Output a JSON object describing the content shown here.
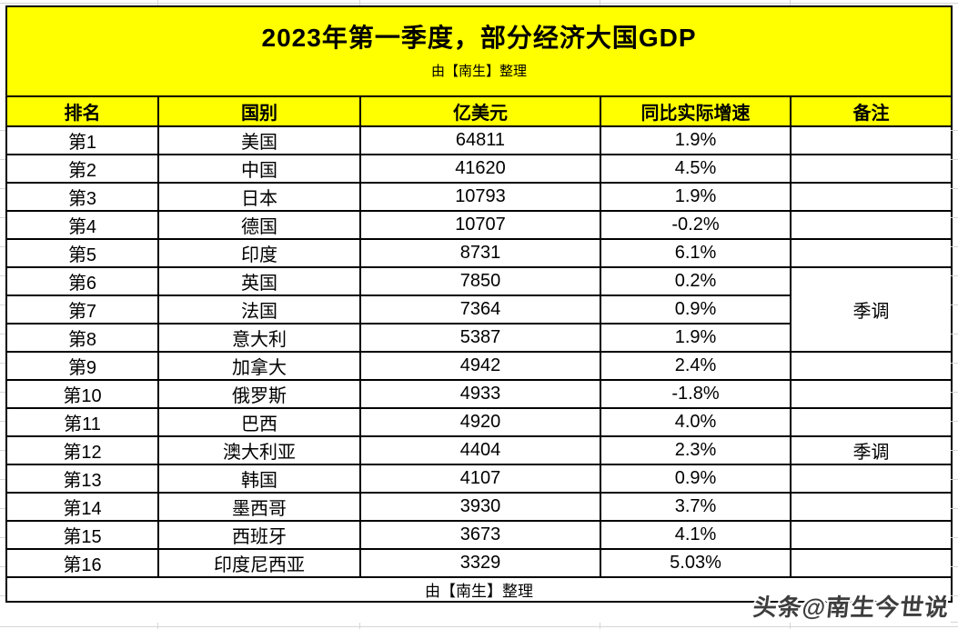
{
  "page": {
    "title": "2023年第一季度，部分经济大国GDP",
    "subtitle": "由【南生】整理",
    "footer": "由【南生】整理",
    "watermark": "头条@南生今世说"
  },
  "table": {
    "columns": [
      "排名",
      "国别",
      "亿美元",
      "同比实际增速",
      "备注"
    ],
    "rows": [
      {
        "rank": "第1",
        "country": "美国",
        "gdp": "64811",
        "growth": "1.9%",
        "note": ""
      },
      {
        "rank": "第2",
        "country": "中国",
        "gdp": "41620",
        "growth": "4.5%",
        "note": ""
      },
      {
        "rank": "第3",
        "country": "日本",
        "gdp": "10793",
        "growth": "1.9%",
        "note": ""
      },
      {
        "rank": "第4",
        "country": "德国",
        "gdp": "10707",
        "growth": "-0.2%",
        "note": ""
      },
      {
        "rank": "第5",
        "country": "印度",
        "gdp": "8731",
        "growth": "6.1%",
        "note": ""
      },
      {
        "rank": "第6",
        "country": "英国",
        "gdp": "7850",
        "growth": "0.2%",
        "note": "季调"
      },
      {
        "rank": "第7",
        "country": "法国",
        "gdp": "7364",
        "growth": "0.9%",
        "note": ""
      },
      {
        "rank": "第8",
        "country": "意大利",
        "gdp": "5387",
        "growth": "1.9%",
        "note": ""
      },
      {
        "rank": "第9",
        "country": "加拿大",
        "gdp": "4942",
        "growth": "2.4%",
        "note": ""
      },
      {
        "rank": "第10",
        "country": "俄罗斯",
        "gdp": "4933",
        "growth": "-1.8%",
        "note": ""
      },
      {
        "rank": "第11",
        "country": "巴西",
        "gdp": "4920",
        "growth": "4.0%",
        "note": ""
      },
      {
        "rank": "第12",
        "country": "澳大利亚",
        "gdp": "4404",
        "growth": "2.3%",
        "note": "季调"
      },
      {
        "rank": "第13",
        "country": "韩国",
        "gdp": "4107",
        "growth": "0.9%",
        "note": ""
      },
      {
        "rank": "第14",
        "country": "墨西哥",
        "gdp": "3930",
        "growth": "3.7%",
        "note": ""
      },
      {
        "rank": "第15",
        "country": "西班牙",
        "gdp": "3673",
        "growth": "4.1%",
        "note": ""
      },
      {
        "rank": "第16",
        "country": "印度尼西亚",
        "gdp": "3329",
        "growth": "5.03%",
        "note": ""
      }
    ]
  },
  "chart_data": {
    "type": "table",
    "title": "2023年第一季度，部分经济大国GDP",
    "subtitle": "由【南生】整理",
    "columns": [
      "排名",
      "国别",
      "亿美元",
      "同比实际增速",
      "备注"
    ],
    "rows": [
      {
        "rank": 1,
        "country": "美国",
        "gdp_100m_usd": 64811,
        "yoy_real_growth_pct": 1.9,
        "note": ""
      },
      {
        "rank": 2,
        "country": "中国",
        "gdp_100m_usd": 41620,
        "yoy_real_growth_pct": 4.5,
        "note": ""
      },
      {
        "rank": 3,
        "country": "日本",
        "gdp_100m_usd": 10793,
        "yoy_real_growth_pct": 1.9,
        "note": ""
      },
      {
        "rank": 4,
        "country": "德国",
        "gdp_100m_usd": 10707,
        "yoy_real_growth_pct": -0.2,
        "note": ""
      },
      {
        "rank": 5,
        "country": "印度",
        "gdp_100m_usd": 8731,
        "yoy_real_growth_pct": 6.1,
        "note": ""
      },
      {
        "rank": 6,
        "country": "英国",
        "gdp_100m_usd": 7850,
        "yoy_real_growth_pct": 0.2,
        "note": "季调"
      },
      {
        "rank": 7,
        "country": "法国",
        "gdp_100m_usd": 7364,
        "yoy_real_growth_pct": 0.9,
        "note": "季调"
      },
      {
        "rank": 8,
        "country": "意大利",
        "gdp_100m_usd": 5387,
        "yoy_real_growth_pct": 1.9,
        "note": "季调"
      },
      {
        "rank": 9,
        "country": "加拿大",
        "gdp_100m_usd": 4942,
        "yoy_real_growth_pct": 2.4,
        "note": ""
      },
      {
        "rank": 10,
        "country": "俄罗斯",
        "gdp_100m_usd": 4933,
        "yoy_real_growth_pct": -1.8,
        "note": ""
      },
      {
        "rank": 11,
        "country": "巴西",
        "gdp_100m_usd": 4920,
        "yoy_real_growth_pct": 4.0,
        "note": ""
      },
      {
        "rank": 12,
        "country": "澳大利亚",
        "gdp_100m_usd": 4404,
        "yoy_real_growth_pct": 2.3,
        "note": "季调"
      },
      {
        "rank": 13,
        "country": "韩国",
        "gdp_100m_usd": 4107,
        "yoy_real_growth_pct": 0.9,
        "note": ""
      },
      {
        "rank": 14,
        "country": "墨西哥",
        "gdp_100m_usd": 3930,
        "yoy_real_growth_pct": 3.7,
        "note": ""
      },
      {
        "rank": 15,
        "country": "西班牙",
        "gdp_100m_usd": 3673,
        "yoy_real_growth_pct": 4.1,
        "note": ""
      },
      {
        "rank": 16,
        "country": "印度尼西亚",
        "gdp_100m_usd": 3329,
        "yoy_real_growth_pct": 5.03,
        "note": ""
      }
    ],
    "merged_note": {
      "label": "季调",
      "applies_to_ranks": [
        6,
        7,
        8
      ]
    },
    "layout_hints": {
      "negative_values_red": true,
      "header_background": "yellow",
      "grid": true
    }
  },
  "colors": {
    "header_bg": "#FFFF00",
    "negative": "#FF0000",
    "gridline": "#d6d6d6",
    "watermark": "#3d3d3d"
  }
}
